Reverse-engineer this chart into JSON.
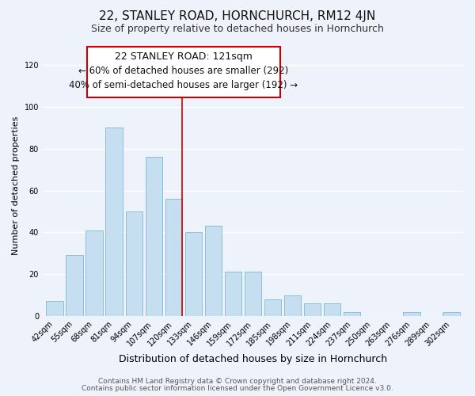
{
  "title": "22, STANLEY ROAD, HORNCHURCH, RM12 4JN",
  "subtitle": "Size of property relative to detached houses in Hornchurch",
  "xlabel": "Distribution of detached houses by size in Hornchurch",
  "ylabel": "Number of detached properties",
  "footer_line1": "Contains HM Land Registry data © Crown copyright and database right 2024.",
  "footer_line2": "Contains public sector information licensed under the Open Government Licence v3.0.",
  "bar_labels": [
    "42sqm",
    "55sqm",
    "68sqm",
    "81sqm",
    "94sqm",
    "107sqm",
    "120sqm",
    "133sqm",
    "146sqm",
    "159sqm",
    "172sqm",
    "185sqm",
    "198sqm",
    "211sqm",
    "224sqm",
    "237sqm",
    "250sqm",
    "263sqm",
    "276sqm",
    "289sqm",
    "302sqm"
  ],
  "bar_values": [
    7,
    29,
    41,
    90,
    50,
    76,
    56,
    40,
    43,
    21,
    21,
    8,
    10,
    6,
    6,
    2,
    0,
    0,
    2,
    0,
    2
  ],
  "bar_color": "#c5dff0",
  "bar_edge_color": "#7fb8d8",
  "highlight_bar_index": 6,
  "annotation_title": "22 STANLEY ROAD: 121sqm",
  "annotation_line2": "← 60% of detached houses are smaller (292)",
  "annotation_line3": "40% of semi-detached houses are larger (192) →",
  "annotation_box_facecolor": "#ffffff",
  "annotation_border_color": "#cc0000",
  "red_line_color": "#cc0000",
  "ylim": [
    0,
    125
  ],
  "yticks": [
    0,
    20,
    40,
    60,
    80,
    100,
    120
  ],
  "background_color": "#eef2fa",
  "grid_color": "#ffffff",
  "title_fontsize": 11,
  "subtitle_fontsize": 9,
  "xlabel_fontsize": 9,
  "ylabel_fontsize": 8,
  "tick_fontsize": 7,
  "annotation_title_fontsize": 9,
  "annotation_text_fontsize": 8.5,
  "footer_fontsize": 6.5
}
